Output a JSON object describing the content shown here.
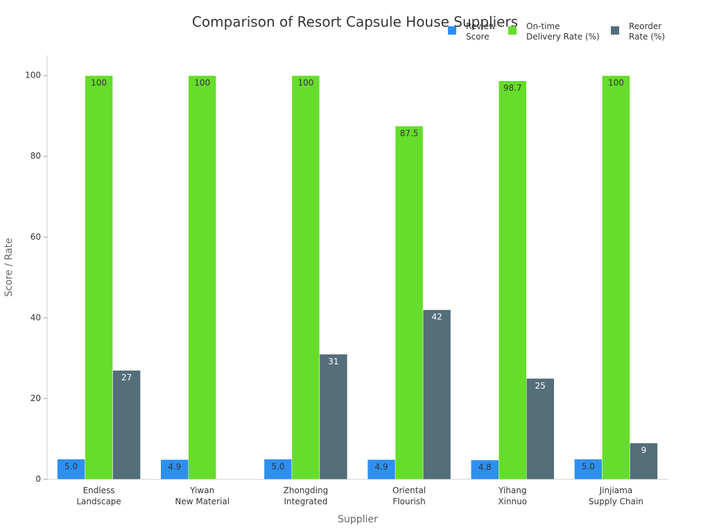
{
  "chart_data": {
    "type": "bar",
    "title": "Comparison of Resort Capsule House Suppliers",
    "x_label": "Supplier",
    "y_label": "Score / Rate",
    "categories": [
      "Endless\nLandscape",
      "Yiwan\nNew Material",
      "Zhongding\nIntegrated",
      "Oriental\nFlourish",
      "Yihang\nXinnuo",
      "Jinjiama\nSupply Chain"
    ],
    "series": [
      {
        "name": "Review\nScore",
        "color": "#2e8ff0",
        "values": [
          5.0,
          4.9,
          5.0,
          4.9,
          4.8,
          5.0
        ],
        "value_labels": [
          "5.0",
          "4.9",
          "5.0",
          "4.9",
          "4.8",
          "5.0"
        ]
      },
      {
        "name": "On-time\nDelivery Rate (%)",
        "color": "#66dd2a",
        "values": [
          100,
          100,
          100,
          87.5,
          98.7,
          100
        ]
      },
      {
        "name": "Reorder\nRate (%)",
        "color": "#546e7a",
        "values": [
          27,
          null,
          31,
          42,
          25,
          9
        ]
      }
    ],
    "ylim": [
      0,
      105
    ],
    "yticks": [
      0,
      20,
      40,
      60,
      80,
      100
    ],
    "grid": false,
    "legend": "upper right"
  }
}
